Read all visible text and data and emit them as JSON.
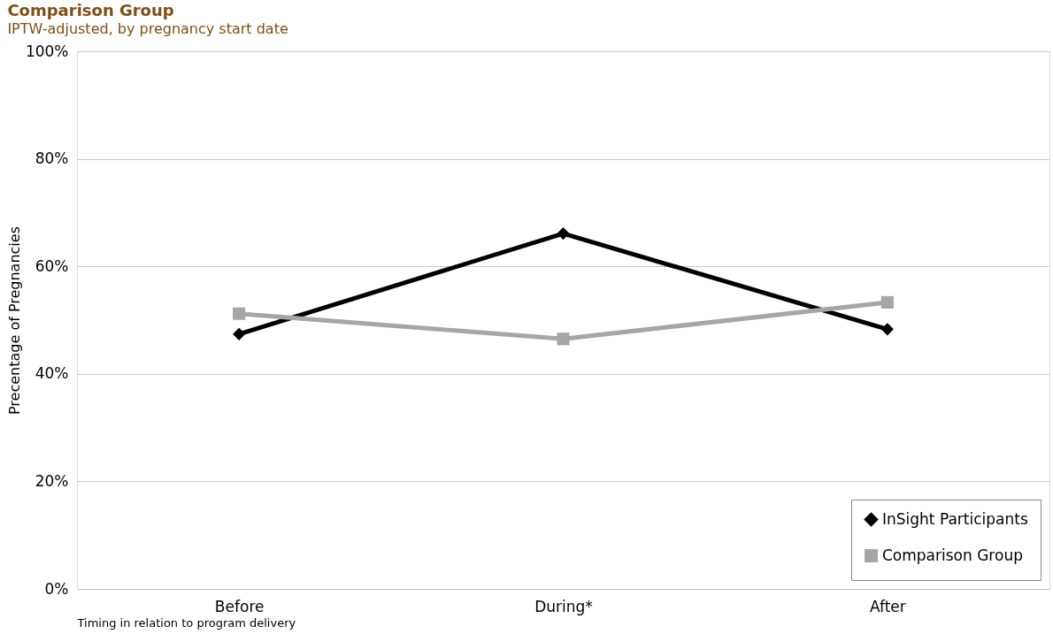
{
  "chart_data": {
    "type": "line",
    "title": "Comparison Group",
    "subtitle": "IPTW-adjusted, by pregnancy start date",
    "xlabel": "Timing in relation to program delivery",
    "ylabel": "Precentage of Pregnancies",
    "categories": [
      "Before",
      "During*",
      "After"
    ],
    "series": [
      {
        "name": "InSight Participants",
        "color": "#000000",
        "marker": "diamond",
        "values": [
          47.4,
          66.1,
          48.3
        ]
      },
      {
        "name": "Comparison Group",
        "color": "#a6a6a6",
        "marker": "square",
        "values": [
          51.2,
          46.5,
          53.3
        ]
      }
    ],
    "ylim": [
      0,
      100
    ],
    "yticks": [
      {
        "value": 0,
        "label": "0%"
      },
      {
        "value": 20,
        "label": "20%"
      },
      {
        "value": 40,
        "label": "40%"
      },
      {
        "value": 60,
        "label": "60%"
      },
      {
        "value": 80,
        "label": "80%"
      },
      {
        "value": 100,
        "label": "100%"
      }
    ],
    "grid": "y",
    "legend": "bottom right",
    "line_style": "solid"
  }
}
